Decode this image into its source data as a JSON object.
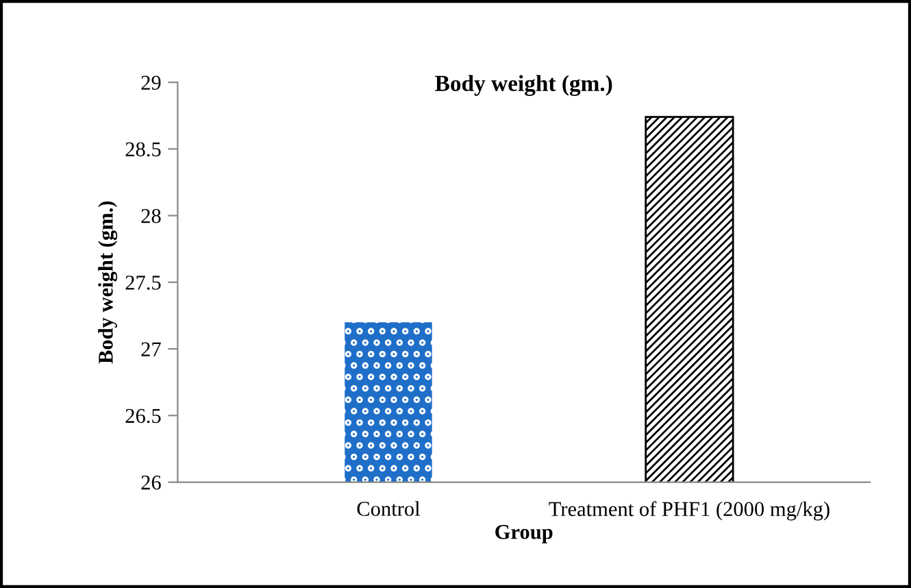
{
  "chart_data": {
    "type": "bar",
    "title": "Body weight (gm.)",
    "xlabel": "Group",
    "ylabel": "Body weight (gm.)",
    "categories": [
      "Control",
      "Treatment of PHF1 (2000 mg/kg)"
    ],
    "values": [
      27.2,
      28.74
    ],
    "colors": [
      "#1f6fc8",
      "#000000"
    ],
    "ylim": [
      26,
      29
    ],
    "yticks": [
      26,
      26.5,
      27,
      27.5,
      28,
      28.5,
      29
    ],
    "grid": false,
    "legend": false
  }
}
